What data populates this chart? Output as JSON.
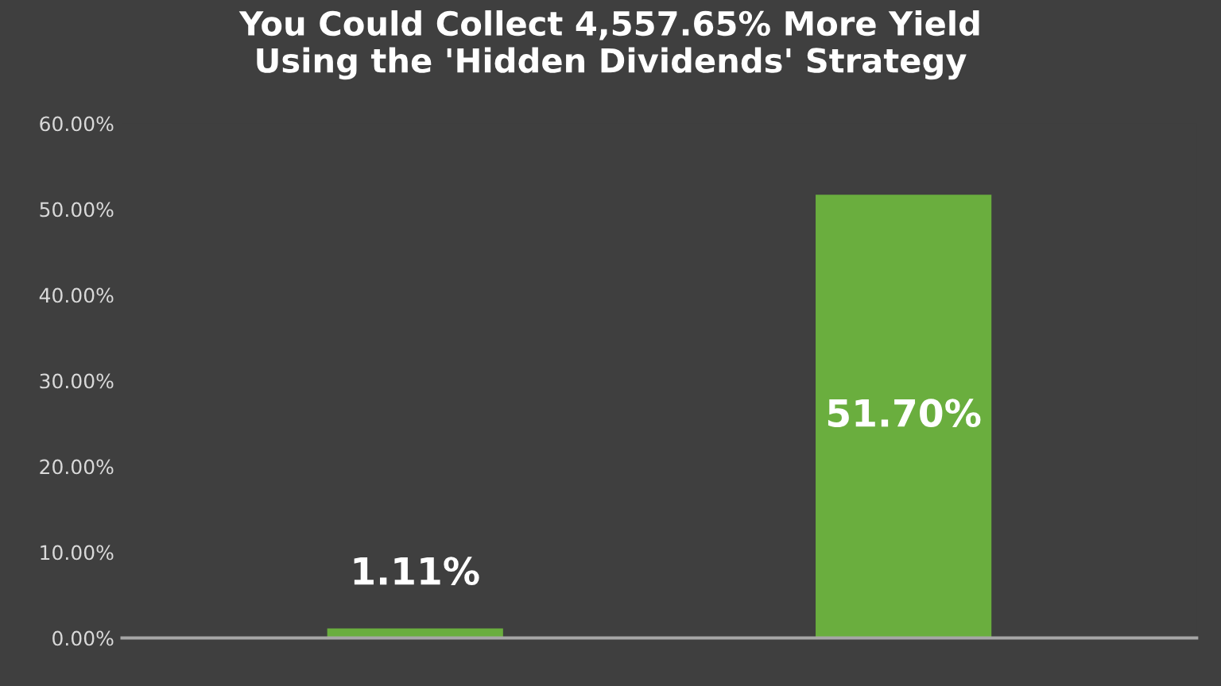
{
  "chart_data": {
    "type": "bar",
    "title": "You Could Collect 4,557.65% More Yield\nUsing the 'Hidden Dividends' Strategy",
    "categories": [
      null,
      null
    ],
    "values": [
      1.11,
      51.7
    ],
    "color": "#6aae3e",
    "value_labels": [
      "1.11%",
      "51.70%"
    ],
    "ylim": [
      0,
      60
    ],
    "yticks": [
      {
        "value": 0,
        "label": "0.00%"
      },
      {
        "value": 10,
        "label": "10.00%"
      },
      {
        "value": 20,
        "label": "20.00%"
      },
      {
        "value": 30,
        "label": "30.00%"
      },
      {
        "value": 40,
        "label": "40.00%"
      },
      {
        "value": 50,
        "label": "50.00%"
      },
      {
        "value": 60,
        "label": "60.00%"
      }
    ],
    "grid": false
  }
}
